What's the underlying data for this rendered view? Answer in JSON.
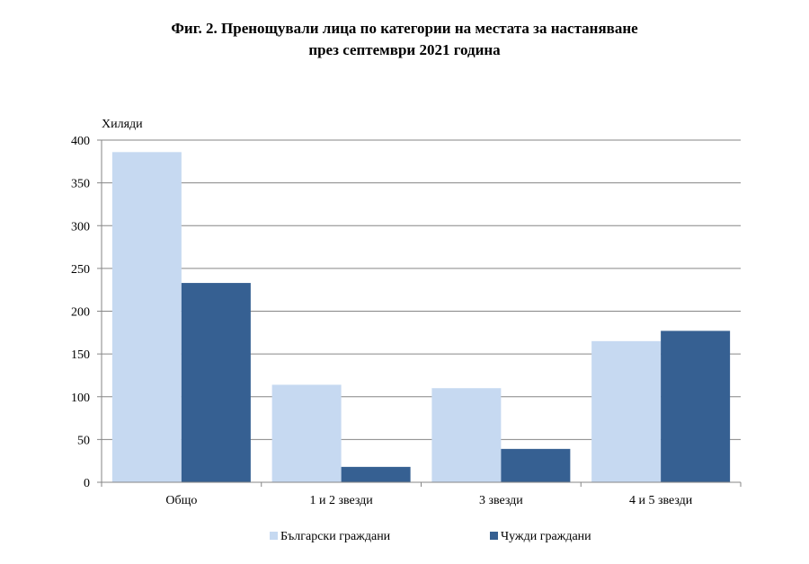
{
  "title_line1": "Фиг. 2. Пренощували лица по категории на местата за настаняване",
  "title_line2": "през септември 2021 година",
  "chart_data": {
    "type": "bar",
    "categories": [
      "Общо",
      "1 и 2 звезди",
      "3 звезди",
      "4 и 5 звезди"
    ],
    "series": [
      {
        "name": "Български граждани",
        "values": [
          386,
          114,
          110,
          165
        ],
        "color": "#c6d9f1"
      },
      {
        "name": "Чужди граждани",
        "values": [
          233,
          18,
          39,
          177
        ],
        "color": "#366092"
      }
    ],
    "ylabel": "Хиляди",
    "ylim": [
      0,
      400
    ],
    "yticks": [
      0,
      50,
      100,
      150,
      200,
      250,
      300,
      350,
      400
    ],
    "grid": true,
    "legend": "bottom"
  }
}
